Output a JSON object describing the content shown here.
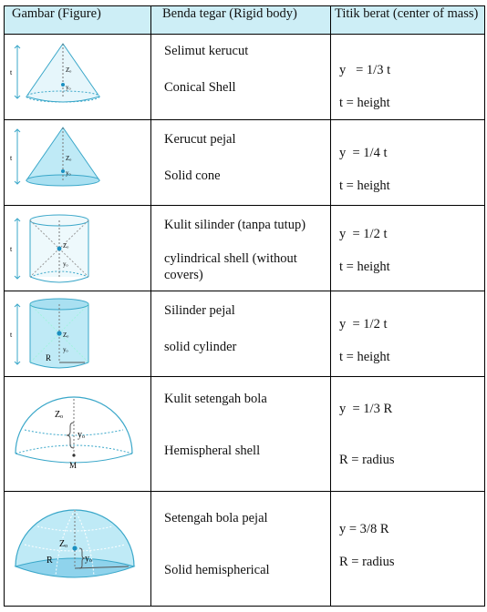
{
  "headers": {
    "figure": "Gambar (Figure)",
    "rigid_body": "Benda tegar (Rigid body)",
    "center_of_mass": "Titik berat (center of mass)"
  },
  "rows": [
    {
      "id": "conical-shell",
      "name_id": "Selimut kerucut",
      "name_en": "Conical Shell",
      "formula": "y   = 1/3 t",
      "note": "t = height",
      "fig_labels": {
        "height": "t",
        "z": "Zₒ",
        "y": "yₒ"
      }
    },
    {
      "id": "solid-cone",
      "name_id": "Kerucut pejal",
      "name_en": "Solid cone",
      "formula": "y  = 1/4 t",
      "note": "t = height",
      "fig_labels": {
        "height": "t",
        "z": "Zₒ",
        "y": "yₒ"
      }
    },
    {
      "id": "cylindrical-shell",
      "name_id": "Kulit silinder (tanpa tutup)",
      "name_en": "cylindrical shell (without covers)",
      "formula": "y  = 1/2 t",
      "note": "t = height",
      "fig_labels": {
        "height": "t",
        "z": "Zₒ",
        "y": "yₒ"
      }
    },
    {
      "id": "solid-cylinder",
      "name_id": "Silinder pejal",
      "name_en": "solid cylinder",
      "formula": "y  = 1/2 t",
      "note": "t = height",
      "fig_labels": {
        "height": "t",
        "z": "Zₒ",
        "y": "yₒ",
        "r": "R"
      }
    },
    {
      "id": "hemispherical-shell",
      "name_id": "Kulit setengah bola",
      "name_en": "Hemispheral shell",
      "formula": "y  = 1/3 R",
      "note": "R = radius",
      "fig_labels": {
        "z": "Zₒ",
        "y": "yₒ",
        "m": "M"
      }
    },
    {
      "id": "solid-hemisphere",
      "name_id": "Setengah bola pejal",
      "name_en": "Solid hemispherical",
      "formula": "y = 3/8 R",
      "note": "R = radius",
      "fig_labels": {
        "z": "Zₒ",
        "y": "yₒ",
        "r": "R"
      }
    }
  ],
  "colors": {
    "header_bg": "#cdeef6",
    "fill": "#bfeaf6",
    "stroke": "#3aa7c9",
    "dot": "#1a8fc0"
  }
}
